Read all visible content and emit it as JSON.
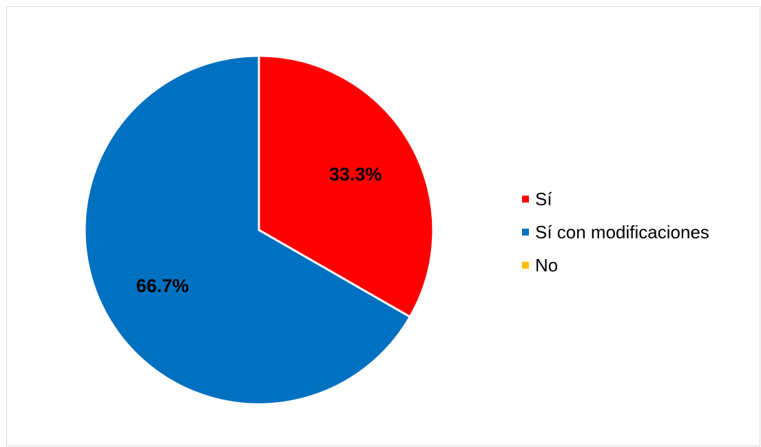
{
  "chart_data": {
    "type": "pie",
    "categories": [
      "Sí",
      "Sí con modificaciones",
      "No"
    ],
    "values": [
      33.3,
      66.7,
      0
    ],
    "data_labels": [
      "33.3%",
      "66.7%",
      ""
    ],
    "colors": [
      "#ff0000",
      "#0070c0",
      "#ffc000"
    ],
    "start_angle_deg": 0,
    "direction": "clockwise",
    "legend_position": "right"
  },
  "legend": {
    "items": [
      {
        "label": "Sí",
        "color": "#ff0000"
      },
      {
        "label": "Sí con modificaciones",
        "color": "#0070c0"
      },
      {
        "label": "No",
        "color": "#ffc000"
      }
    ]
  }
}
